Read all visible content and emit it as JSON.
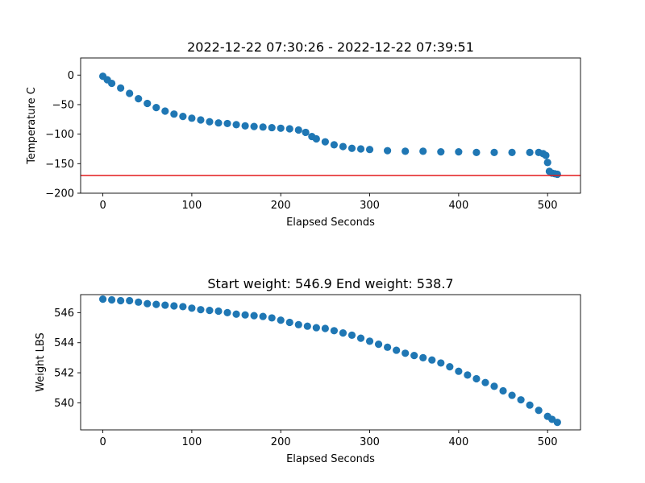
{
  "chart_data": [
    {
      "type": "scatter",
      "title": "2022-12-22 07:30:26 - 2022-12-22 07:39:51",
      "xlabel": "Elapsed Seconds",
      "ylabel": "Temperature C",
      "xlim": [
        -25,
        537
      ],
      "ylim": [
        -200,
        29
      ],
      "xticks": [
        0,
        100,
        200,
        300,
        400,
        500
      ],
      "yticks": [
        0,
        -50,
        -100,
        -150,
        -200
      ],
      "point_color": "#1f77b4",
      "reference_line": {
        "y": -170,
        "color": "#e31a1c"
      },
      "grid": false,
      "x": [
        0,
        5,
        10,
        20,
        30,
        40,
        50,
        60,
        70,
        80,
        90,
        100,
        110,
        120,
        130,
        140,
        150,
        160,
        170,
        180,
        190,
        200,
        210,
        220,
        228,
        235,
        240,
        250,
        260,
        270,
        280,
        290,
        300,
        320,
        340,
        360,
        380,
        400,
        420,
        440,
        460,
        480,
        490,
        495,
        498,
        500,
        502,
        505,
        508,
        511
      ],
      "y": [
        -2,
        -8,
        -14,
        -22,
        -31,
        -40,
        -48,
        -55,
        -61,
        -66,
        -70,
        -73,
        -76,
        -79,
        -81,
        -82,
        -84,
        -86,
        -87,
        -88,
        -89,
        -90,
        -91,
        -93,
        -97,
        -104,
        -108,
        -113,
        -118,
        -121,
        -124,
        -125,
        -126,
        -128,
        -129,
        -129,
        -130,
        -130,
        -131,
        -131,
        -131,
        -131,
        -131,
        -133,
        -136,
        -148,
        -163,
        -166,
        -167,
        -168
      ]
    },
    {
      "type": "scatter",
      "title": "Start weight: 546.9 End weight: 538.7",
      "xlabel": "Elapsed Seconds",
      "ylabel": "Weight LBS",
      "xlim": [
        -25,
        537
      ],
      "ylim": [
        538.2,
        547.2
      ],
      "xticks": [
        0,
        100,
        200,
        300,
        400,
        500
      ],
      "yticks": [
        546,
        544,
        542,
        540
      ],
      "point_color": "#1f77b4",
      "grid": false,
      "x": [
        0,
        10,
        20,
        30,
        40,
        50,
        60,
        70,
        80,
        90,
        100,
        110,
        120,
        130,
        140,
        150,
        160,
        170,
        180,
        190,
        200,
        210,
        220,
        230,
        240,
        250,
        260,
        270,
        280,
        290,
        300,
        310,
        320,
        330,
        340,
        350,
        360,
        370,
        380,
        390,
        400,
        410,
        420,
        430,
        440,
        450,
        460,
        470,
        480,
        490,
        500,
        505,
        511
      ],
      "y": [
        546.9,
        546.85,
        546.8,
        546.8,
        546.7,
        546.6,
        546.55,
        546.5,
        546.45,
        546.4,
        546.3,
        546.2,
        546.15,
        546.1,
        546.0,
        545.9,
        545.85,
        545.8,
        545.75,
        545.65,
        545.5,
        545.35,
        545.2,
        545.1,
        545.0,
        544.95,
        544.8,
        544.65,
        544.5,
        544.3,
        544.1,
        543.9,
        543.7,
        543.5,
        543.3,
        543.15,
        543.0,
        542.85,
        542.65,
        542.4,
        542.1,
        541.85,
        541.6,
        541.35,
        541.1,
        540.8,
        540.5,
        540.2,
        539.85,
        539.5,
        539.1,
        538.9,
        538.7
      ]
    }
  ]
}
